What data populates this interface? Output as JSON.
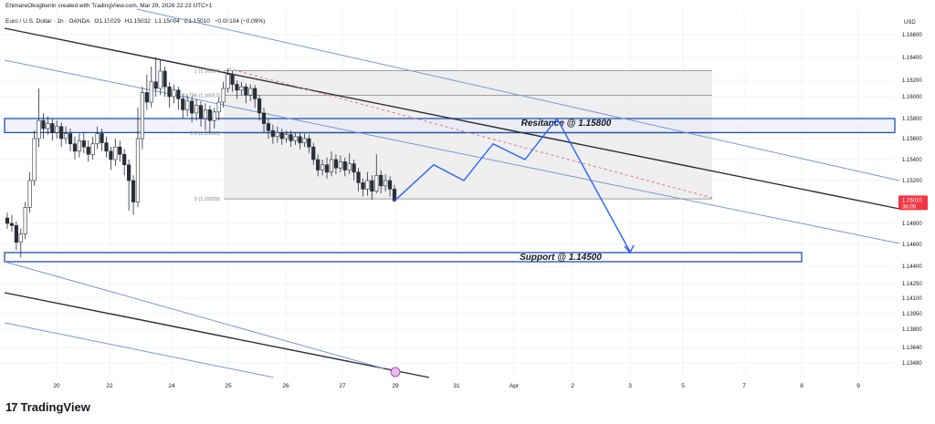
{
  "header": {
    "created_by": "EhimareOkogbenin created with TradingView.com, Mar 29, 2026 22:23 UTC+1"
  },
  "symbol": {
    "name": "Euro / U.S. Dollar · 1h · OANDA",
    "open": "O1.15029",
    "high": "H1.15032",
    "low": "L1.15004",
    "close": "C1.15010",
    "change": "−0.00104 (−0.09%)"
  },
  "footer": {
    "logo_text": "TradingView"
  },
  "chart_data": {
    "type": "candlestick",
    "currency": "USD",
    "y_ticks": [
      "1.16600",
      "1.16400",
      "1.16200",
      "1.16000",
      "1.15800",
      "1.15600",
      "1.15400",
      "1.15200",
      "1.14800",
      "1.14600",
      "1.14400",
      "1.14250",
      "1.14100",
      "1.13950",
      "1.13800",
      "1.13640",
      "1.13480"
    ],
    "y_tick_values": [
      1.166,
      1.164,
      1.162,
      1.16,
      1.158,
      1.156,
      1.154,
      1.152,
      1.148,
      1.146,
      1.144,
      1.1425,
      1.141,
      1.1395,
      1.138,
      1.1364,
      1.1348
    ],
    "x_ticks": [
      "20",
      "22",
      "24",
      "25",
      "26",
      "27",
      "29",
      "31",
      "Apr",
      "2",
      "3",
      "5",
      "7",
      "8",
      "9"
    ],
    "current_price": {
      "value": "1.15010",
      "countdown": "36:09",
      "color": "#f23645"
    },
    "fib_levels": [
      {
        "label": "1 (1.16284)",
        "value": 1.16284
      },
      {
        "label": "0.786 (1.16017)",
        "value": 1.16017
      },
      {
        "label": "0.5 (1.15656)",
        "value": 1.15656
      },
      {
        "label": "0 (1.15029)",
        "value": 1.15029
      }
    ],
    "resistance": {
      "label": "Resitance @ 1.15800",
      "upper": 1.158,
      "lower": 1.1566
    },
    "support": {
      "label": "Support @ 1.14500",
      "upper": 1.1453,
      "lower": 1.1444
    },
    "candles": [
      [
        1.1485,
        1.148,
        1.149,
        1.1475
      ],
      [
        1.148,
        1.1478,
        1.1488,
        1.1472
      ],
      [
        1.1478,
        1.1462,
        1.1482,
        1.1455
      ],
      [
        1.1462,
        1.147,
        1.1475,
        1.1448
      ],
      [
        1.147,
        1.1495,
        1.15,
        1.1465
      ],
      [
        1.1495,
        1.152,
        1.1528,
        1.149
      ],
      [
        1.152,
        1.156,
        1.1568,
        1.1515
      ],
      [
        1.156,
        1.1578,
        1.161,
        1.1552
      ],
      [
        1.1578,
        1.157,
        1.1585,
        1.156
      ],
      [
        1.157,
        1.1575,
        1.1582,
        1.1564
      ],
      [
        1.1575,
        1.1566,
        1.158,
        1.1558
      ],
      [
        1.1566,
        1.1572,
        1.1578,
        1.156
      ],
      [
        1.1572,
        1.156,
        1.1576,
        1.1552
      ],
      [
        1.156,
        1.1565,
        1.1572,
        1.1555
      ],
      [
        1.1565,
        1.1555,
        1.157,
        1.1548
      ],
      [
        1.1555,
        1.1548,
        1.1562,
        1.154
      ],
      [
        1.1548,
        1.1558,
        1.1565,
        1.1542
      ],
      [
        1.1558,
        1.1552,
        1.1566,
        1.1546
      ],
      [
        1.1552,
        1.1545,
        1.1558,
        1.1538
      ],
      [
        1.1545,
        1.1555,
        1.1562,
        1.154
      ],
      [
        1.1555,
        1.1565,
        1.1572,
        1.155
      ],
      [
        1.1565,
        1.1556,
        1.157,
        1.1548
      ],
      [
        1.1556,
        1.1548,
        1.1562,
        1.1542
      ],
      [
        1.1548,
        1.154,
        1.1552,
        1.153
      ],
      [
        1.154,
        1.1552,
        1.156,
        1.1534
      ],
      [
        1.1552,
        1.1545,
        1.1558,
        1.1538
      ],
      [
        1.1545,
        1.1535,
        1.155,
        1.1525
      ],
      [
        1.1535,
        1.152,
        1.154,
        1.1492
      ],
      [
        1.152,
        1.15,
        1.1525,
        1.1488
      ],
      [
        1.15,
        1.156,
        1.159,
        1.1495
      ],
      [
        1.156,
        1.1605,
        1.1612,
        1.155
      ],
      [
        1.1605,
        1.1595,
        1.1625,
        1.1588
      ],
      [
        1.1595,
        1.1618,
        1.1632,
        1.159
      ],
      [
        1.1618,
        1.161,
        1.164,
        1.16
      ],
      [
        1.161,
        1.1628,
        1.1638,
        1.1602
      ],
      [
        1.1628,
        1.1612,
        1.1632,
        1.16
      ],
      [
        1.1612,
        1.16,
        1.1618,
        1.159
      ],
      [
        1.16,
        1.1608,
        1.1615,
        1.1594
      ],
      [
        1.1608,
        1.1598,
        1.1612,
        1.1588
      ],
      [
        1.1598,
        1.1588,
        1.1604,
        1.158
      ],
      [
        1.1588,
        1.1596,
        1.1602,
        1.1582
      ],
      [
        1.1596,
        1.1585,
        1.16,
        1.1576
      ],
      [
        1.1585,
        1.1592,
        1.1598,
        1.1578
      ],
      [
        1.1592,
        1.158,
        1.1596,
        1.1572
      ],
      [
        1.158,
        1.1588,
        1.1594,
        1.1568
      ],
      [
        1.1588,
        1.1578,
        1.1592,
        1.1566
      ],
      [
        1.1578,
        1.1586,
        1.159,
        1.157
      ],
      [
        1.1586,
        1.1595,
        1.16,
        1.1578
      ],
      [
        1.1595,
        1.161,
        1.1618,
        1.159
      ],
      [
        1.161,
        1.1625,
        1.163,
        1.1605
      ],
      [
        1.1625,
        1.1615,
        1.1628,
        1.1606
      ],
      [
        1.1615,
        1.1608,
        1.162,
        1.1598
      ],
      [
        1.1608,
        1.1612,
        1.1618,
        1.1602
      ],
      [
        1.1612,
        1.1602,
        1.1616,
        1.1594
      ],
      [
        1.1602,
        1.161,
        1.1615,
        1.1596
      ],
      [
        1.161,
        1.1598,
        1.1614,
        1.159
      ],
      [
        1.1598,
        1.1585,
        1.1602,
        1.1578
      ],
      [
        1.1585,
        1.1575,
        1.159,
        1.1566
      ],
      [
        1.1575,
        1.1568,
        1.158,
        1.156
      ],
      [
        1.1568,
        1.1562,
        1.1574,
        1.1555
      ],
      [
        1.1562,
        1.1566,
        1.1572,
        1.1556
      ],
      [
        1.1566,
        1.156,
        1.157,
        1.1554
      ],
      [
        1.156,
        1.1564,
        1.1568,
        1.1556
      ],
      [
        1.1564,
        1.1558,
        1.1568,
        1.1552
      ],
      [
        1.1558,
        1.1562,
        1.1566,
        1.1554
      ],
      [
        1.1562,
        1.1556,
        1.1566,
        1.155
      ],
      [
        1.1556,
        1.156,
        1.1565,
        1.1552
      ],
      [
        1.156,
        1.1552,
        1.1564,
        1.1546
      ],
      [
        1.1552,
        1.154,
        1.1556,
        1.1535
      ],
      [
        1.154,
        1.153,
        1.1545,
        1.1524
      ],
      [
        1.153,
        1.1535,
        1.154,
        1.1525
      ],
      [
        1.1535,
        1.1528,
        1.1542,
        1.1522
      ],
      [
        1.1528,
        1.154,
        1.1548,
        1.1524
      ],
      [
        1.154,
        1.1532,
        1.1545,
        1.1526
      ],
      [
        1.1532,
        1.1538,
        1.1544,
        1.1528
      ],
      [
        1.1538,
        1.153,
        1.1542,
        1.1524
      ],
      [
        1.153,
        1.1536,
        1.1546,
        1.1526
      ],
      [
        1.1536,
        1.1528,
        1.154,
        1.152
      ],
      [
        1.1528,
        1.1518,
        1.1532,
        1.151
      ],
      [
        1.1518,
        1.1512,
        1.1522,
        1.1505
      ],
      [
        1.1512,
        1.152,
        1.1528,
        1.1506
      ],
      [
        1.152,
        1.151,
        1.1525,
        1.1502
      ],
      [
        1.151,
        1.1525,
        1.1545,
        1.1508
      ],
      [
        1.1525,
        1.1515,
        1.153,
        1.1508
      ],
      [
        1.1515,
        1.152,
        1.1526,
        1.151
      ],
      [
        1.152,
        1.1512,
        1.1524,
        1.1505
      ],
      [
        1.1512,
        1.1501,
        1.1516,
        1.15
      ]
    ],
    "projection": [
      {
        "date_index": 0,
        "price": 1.1501
      },
      {
        "date_index": 1,
        "price": 1.1535
      },
      {
        "date_index": 2,
        "price": 1.152
      },
      {
        "date_index": 3,
        "price": 1.1555
      },
      {
        "date_index": 4,
        "price": 1.154
      },
      {
        "date_index": 5,
        "price": 1.158
      },
      {
        "date_index": 6,
        "price": 1.1458
      }
    ]
  }
}
